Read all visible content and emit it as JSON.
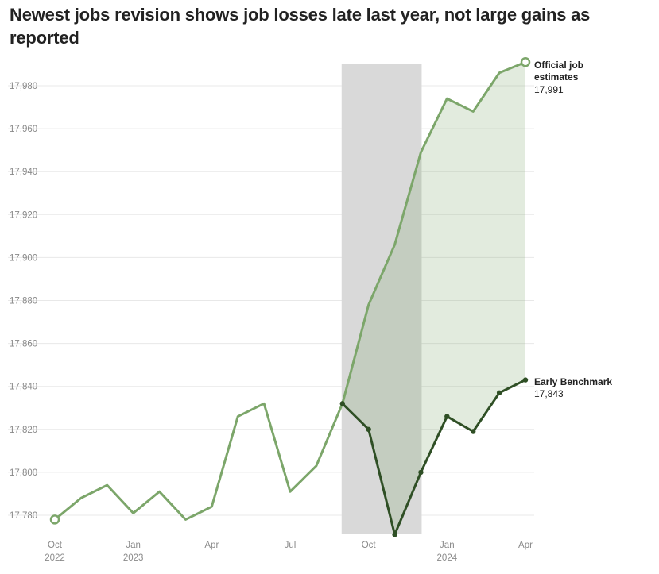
{
  "chart_data": {
    "type": "line",
    "title": "Newest jobs revision shows job losses late last year, not large gains as reported",
    "x": [
      "2022-10",
      "2022-11",
      "2022-12",
      "2023-01",
      "2023-02",
      "2023-03",
      "2023-04",
      "2023-05",
      "2023-06",
      "2023-07",
      "2023-08",
      "2023-09",
      "2023-10",
      "2023-11",
      "2023-12",
      "2024-01",
      "2024-02",
      "2024-03",
      "2024-04"
    ],
    "x_tick_labels": [
      {
        "month": "Oct",
        "year": "2022"
      },
      {
        "month": "Jan",
        "year": "2023"
      },
      {
        "month": "Apr",
        "year": ""
      },
      {
        "month": "Jul",
        "year": ""
      },
      {
        "month": "Oct",
        "year": ""
      },
      {
        "month": "Jan",
        "year": "2024"
      },
      {
        "month": "Apr",
        "year": ""
      }
    ],
    "x_tick_dates": [
      "2022-10",
      "2023-01",
      "2023-04",
      "2023-07",
      "2023-10",
      "2024-01",
      "2024-04"
    ],
    "ylim": [
      17772,
      17994
    ],
    "y_ticks": [
      17780,
      17800,
      17820,
      17840,
      17860,
      17880,
      17900,
      17920,
      17940,
      17960,
      17980
    ],
    "y_tick_labels": [
      "17,780",
      "17,800",
      "17,820",
      "17,840",
      "17,860",
      "17,880",
      "17,900",
      "17,920",
      "17,940",
      "17,960",
      "17,980"
    ],
    "grid": true,
    "highlight_range": [
      "2023-09",
      "2023-12"
    ],
    "series": [
      {
        "name": "Official job estimates",
        "label_line1": "Official job",
        "label_line2": "estimates",
        "end_value_label": "17,991",
        "color": "#7ca66a",
        "x": [
          "2022-10",
          "2022-11",
          "2022-12",
          "2023-01",
          "2023-02",
          "2023-03",
          "2023-04",
          "2023-05",
          "2023-06",
          "2023-07",
          "2023-08",
          "2023-09",
          "2023-10",
          "2023-11",
          "2023-12",
          "2024-01",
          "2024-02",
          "2024-03",
          "2024-04"
        ],
        "values": [
          17778,
          17788,
          17794,
          17781,
          17791,
          17778,
          17784,
          17826,
          17832,
          17791,
          17803,
          17832,
          17878,
          17906,
          17949,
          17974,
          17968,
          17986,
          17991
        ]
      },
      {
        "name": "Early Benchmark",
        "label_line1": "Early Benchmark",
        "end_value_label": "17,843",
        "color": "#2f4f25",
        "x": [
          "2023-09",
          "2023-10",
          "2023-11",
          "2023-12",
          "2024-01",
          "2024-02",
          "2024-03",
          "2024-04"
        ],
        "values": [
          17832,
          17820,
          17771,
          17800,
          17826,
          17819,
          17837,
          17843
        ]
      }
    ],
    "colors": {
      "highlight": "#d9d9d9",
      "fill_gap": "#7ca66a",
      "grid": "#e8e8e8"
    }
  }
}
